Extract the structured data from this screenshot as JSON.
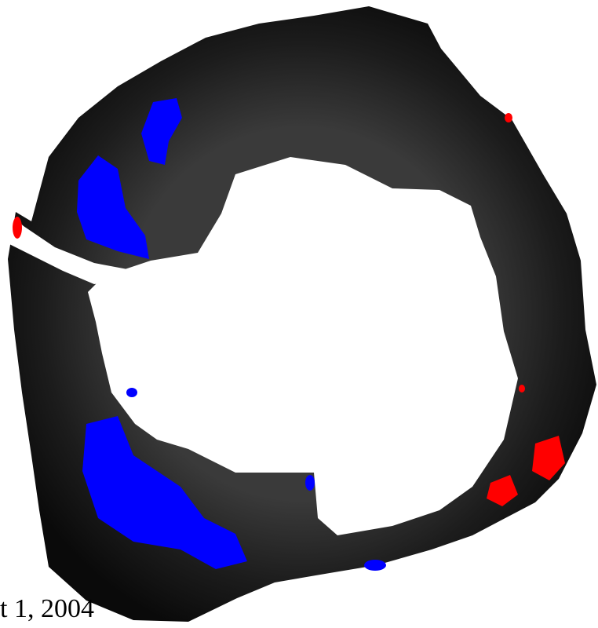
{
  "caption": "t 1, 2004"
}
